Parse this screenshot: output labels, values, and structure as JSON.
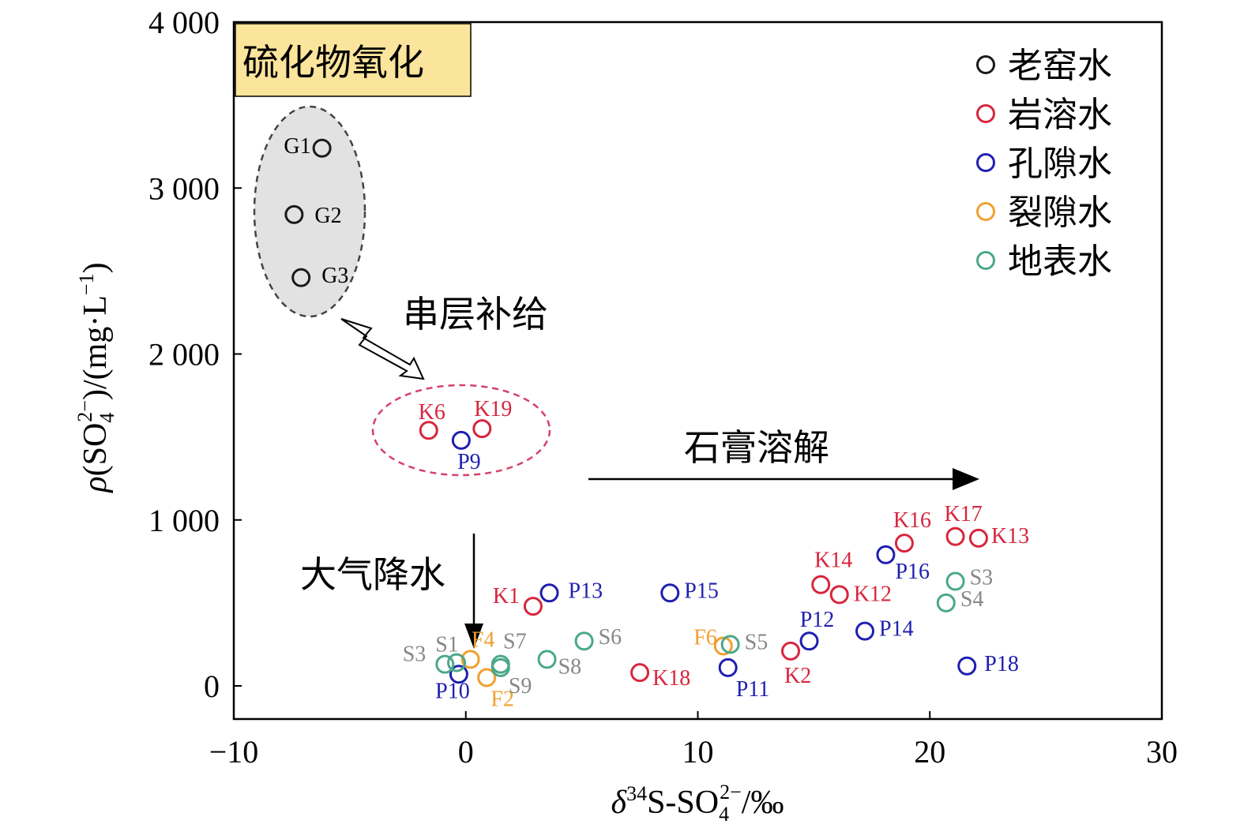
{
  "chart_data": {
    "type": "scatter",
    "xlim": [
      -10,
      30
    ],
    "ylim": [
      -200,
      4000
    ],
    "x_ticks": [
      -10,
      0,
      10,
      20,
      30
    ],
    "x_tick_labels": [
      "−10",
      "0",
      "10",
      "20",
      "30"
    ],
    "y_ticks": [
      0,
      1000,
      2000,
      3000,
      4000
    ],
    "y_tick_labels": [
      "0",
      "1 000",
      "2 000",
      "3 000",
      "4 000"
    ],
    "xlabel": {
      "delta": "δ",
      "sup34": "34",
      "s_so": "S-SO",
      "sub4": "4",
      "sup2": "2−",
      "unit": "/‰"
    },
    "ylabel": {
      "rho": "ρ",
      "open": "(SO",
      "sub4": "4",
      "sup2": "2−",
      "close": ")/(mg·L",
      "sup_neg1": "−1",
      "end": ")"
    },
    "legend_position": "top-right",
    "series": [
      {
        "name": "老窑水",
        "color": "#1a1a1a",
        "points": [
          {
            "x": -6.2,
            "y": 3240,
            "label": "G1"
          },
          {
            "x": -7.4,
            "y": 2840,
            "label": "G2"
          },
          {
            "x": -7.1,
            "y": 2460,
            "label": "G3"
          }
        ]
      },
      {
        "name": "岩溶水",
        "color": "#d7263d",
        "points": [
          {
            "x": -1.6,
            "y": 1540,
            "label": "K6"
          },
          {
            "x": 0.7,
            "y": 1550,
            "label": "K19"
          },
          {
            "x": 18.9,
            "y": 860,
            "label": "K16"
          },
          {
            "x": 21.1,
            "y": 900,
            "label": "K17"
          },
          {
            "x": 22.1,
            "y": 890,
            "label": "K13"
          },
          {
            "x": 15.3,
            "y": 610,
            "label": "K14"
          },
          {
            "x": 16.1,
            "y": 550,
            "label": "K12"
          },
          {
            "x": 2.9,
            "y": 480,
            "label": "K1"
          },
          {
            "x": 7.5,
            "y": 80,
            "label": "K18"
          },
          {
            "x": 14.0,
            "y": 210,
            "label": "K2"
          }
        ]
      },
      {
        "name": "孔隙水",
        "color": "#1f1fb0",
        "points": [
          {
            "x": -0.2,
            "y": 1480,
            "label": "P9"
          },
          {
            "x": 3.6,
            "y": 560,
            "label": "P13"
          },
          {
            "x": 8.8,
            "y": 560,
            "label": "P15"
          },
          {
            "x": 18.1,
            "y": 790,
            "label": "P16"
          },
          {
            "x": 14.8,
            "y": 270,
            "label": "P12"
          },
          {
            "x": 17.2,
            "y": 330,
            "label": "P14"
          },
          {
            "x": 11.3,
            "y": 110,
            "label": "P11"
          },
          {
            "x": 21.6,
            "y": 120,
            "label": "P18"
          },
          {
            "x": -0.3,
            "y": 70,
            "label": "P10"
          }
        ]
      },
      {
        "name": "裂隙水",
        "color": "#f0a030",
        "points": [
          {
            "x": 0.2,
            "y": 160,
            "label": "F4"
          },
          {
            "x": 0.9,
            "y": 50,
            "label": "F2"
          },
          {
            "x": 11.1,
            "y": 240,
            "label": "F6"
          }
        ]
      },
      {
        "name": "地表水",
        "color": "#4aa88a",
        "points": [
          {
            "x": -0.9,
            "y": 130,
            "label": "S3"
          },
          {
            "x": -0.4,
            "y": 140,
            "label": "S1"
          },
          {
            "x": 1.5,
            "y": 130,
            "label": "S7"
          },
          {
            "x": 1.5,
            "y": 110,
            "label": "S9"
          },
          {
            "x": 3.5,
            "y": 160,
            "label": "S8"
          },
          {
            "x": 5.1,
            "y": 270,
            "label": "S6"
          },
          {
            "x": 11.4,
            "y": 250,
            "label": "S5"
          },
          {
            "x": 21.1,
            "y": 630,
            "label": "S3"
          },
          {
            "x": 20.7,
            "y": 500,
            "label": "S4"
          }
        ]
      }
    ],
    "annotations": {
      "sulfide_oxidation": "硫化物氧化",
      "interlayer_recharge": "串层补给",
      "gypsum_dissolution": "石膏溶解",
      "precipitation": "大气降水"
    }
  }
}
